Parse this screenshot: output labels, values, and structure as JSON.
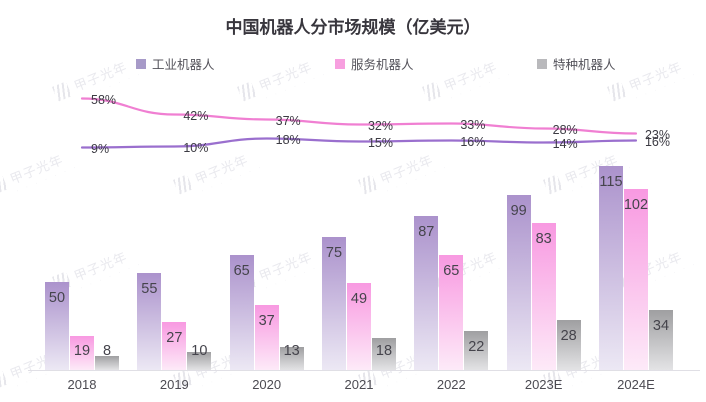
{
  "title": "中国机器人分市场规模（亿美元）",
  "watermark": {
    "brand": "甲子光年",
    "dots": "· · · · · · ·"
  },
  "legend": [
    {
      "label": "工业机器人",
      "swatch": "#a79ac8"
    },
    {
      "label": "服务机器人",
      "swatch": "#f79fdf"
    },
    {
      "label": "特种机器人",
      "swatch": "#b9b9bc"
    }
  ],
  "chart_data": {
    "type": "bar+line",
    "title": "中国机器人分市场规模（亿美元）",
    "categories": [
      "2018",
      "2019",
      "2020",
      "2021",
      "2022",
      "2023E",
      "2024E"
    ],
    "bar_series": [
      {
        "key": "industrial",
        "name": "工业机器人",
        "color_top": "#ab92cc",
        "color_bottom": "#ece8f4",
        "values": [
          50,
          55,
          65,
          75,
          87,
          99,
          115
        ]
      },
      {
        "key": "service",
        "name": "服务机器人",
        "color_top": "#f899e1",
        "color_bottom": "#fdeaf8",
        "values": [
          19,
          27,
          37,
          49,
          65,
          83,
          102
        ]
      },
      {
        "key": "special",
        "name": "特种机器人",
        "color_top": "#9f9fa1",
        "color_bottom": "#e3e3e5",
        "values": [
          8,
          10,
          13,
          18,
          22,
          28,
          34
        ]
      }
    ],
    "line_series": [
      {
        "key": "line-pink",
        "color": "#f07fd2",
        "unit": "%",
        "values_pct": [
          58,
          42,
          37,
          32,
          33,
          28,
          23
        ]
      },
      {
        "key": "line-purple",
        "color": "#9a6fce",
        "unit": "%",
        "values_pct": [
          9,
          10,
          18,
          15,
          16,
          14,
          16
        ]
      }
    ],
    "grid": false,
    "legend_position": "top",
    "x_axis_line": true
  }
}
